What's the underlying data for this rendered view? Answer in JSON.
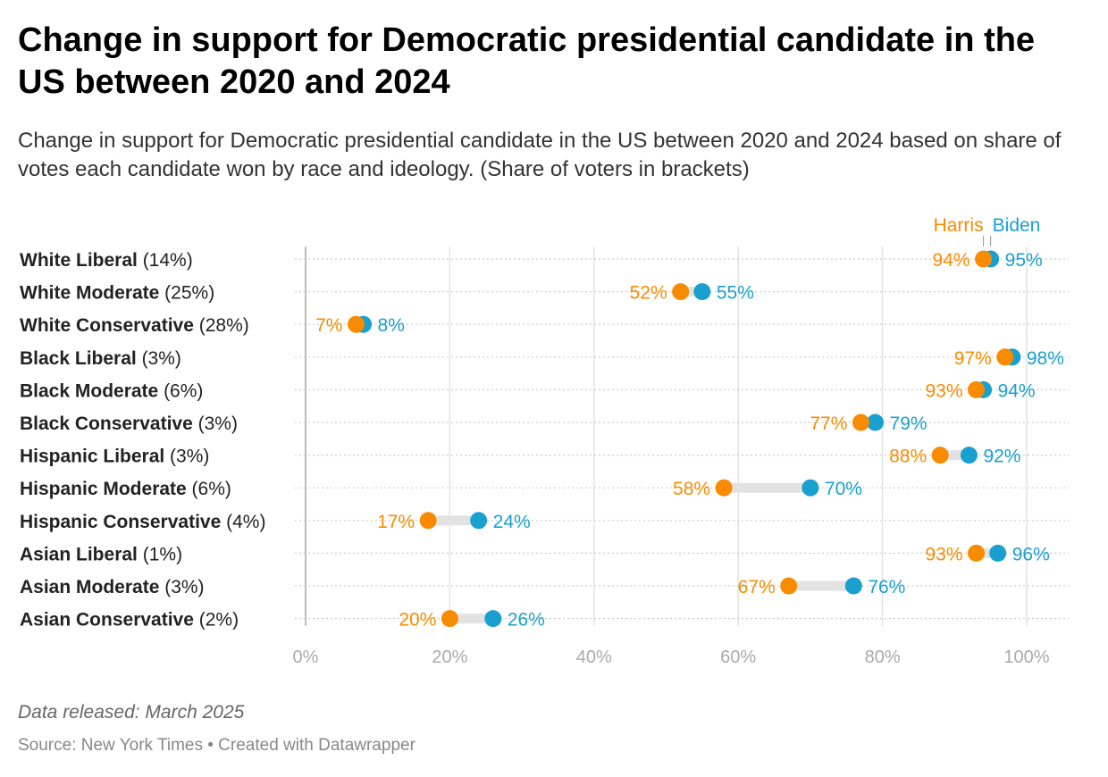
{
  "chart_data": {
    "type": "dot-range",
    "title": "Change in support for Democratic presidential candidate in the US between 2020 and 2024",
    "subtitle": "Change in support for Democratic presidential candidate in the US between 2020 and 2024 based on share of votes each candidate won by race and ideology. (Share of voters in brackets)",
    "categories": [
      {
        "name": "White Liberal",
        "share": "(14%)"
      },
      {
        "name": "White Moderate",
        "share": "(25%)"
      },
      {
        "name": "White Conservative",
        "share": "(28%)"
      },
      {
        "name": "Black Liberal",
        "share": "(3%)"
      },
      {
        "name": "Black Moderate",
        "share": "(6%)"
      },
      {
        "name": "Black Conservative",
        "share": "(3%)"
      },
      {
        "name": "Hispanic Liberal",
        "share": "(3%)"
      },
      {
        "name": "Hispanic Moderate",
        "share": "(6%)"
      },
      {
        "name": "Hispanic Conservative",
        "share": "(4%)"
      },
      {
        "name": "Asian Liberal",
        "share": "(1%)"
      },
      {
        "name": "Asian Moderate",
        "share": "(3%)"
      },
      {
        "name": "Asian Conservative",
        "share": "(2%)"
      }
    ],
    "series": [
      {
        "name": "Harris",
        "color": "#f98b00",
        "values": [
          94,
          52,
          7,
          97,
          93,
          77,
          88,
          58,
          17,
          93,
          67,
          20
        ]
      },
      {
        "name": "Biden",
        "color": "#1aa0cf",
        "values": [
          95,
          55,
          8,
          98,
          94,
          79,
          92,
          70,
          24,
          96,
          76,
          26
        ]
      }
    ],
    "xlim": [
      0,
      100
    ],
    "xticks": [
      "0%",
      "20%",
      "40%",
      "60%",
      "80%",
      "100%"
    ],
    "grid": true,
    "legend": "top-right"
  },
  "footer": {
    "note": "Data released: March 2025",
    "source": "Source: New York Times • Created with Datawrapper"
  }
}
